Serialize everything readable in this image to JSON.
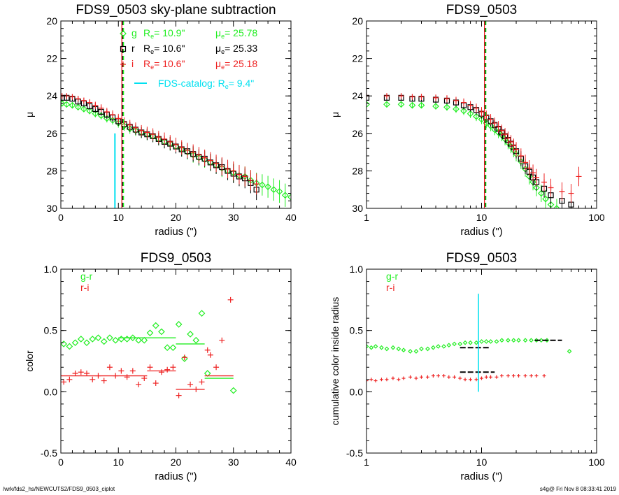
{
  "footer": {
    "path": "/wrk/fds2_hs/NEWCUTS2/FDS9_0503_ciplot",
    "stamp": "s4g@  Fri Nov  8 08:33:41 2019"
  },
  "colors": {
    "g": "#22ee22",
    "r": "#000000",
    "i": "#ee2222",
    "catalog": "#00e0f0"
  },
  "chart_data": [
    {
      "id": "p1",
      "type": "scatter",
      "title": "FDS9_0503 sky-plane subtraction",
      "xlabel": "radius (\")",
      "ylabel": "μ",
      "xscale": "linear",
      "xlim": [
        0,
        40
      ],
      "ylim": [
        30,
        20
      ],
      "xticks": [
        "0",
        "10",
        "20",
        "30",
        "40"
      ],
      "yticks": [
        "20",
        "22",
        "24",
        "26",
        "28",
        "30"
      ],
      "legend": [
        {
          "marker": "diamond",
          "color": "#22ee22",
          "band": "g",
          "re_label": "R",
          "re_sub": "e",
          "re_value": "= 10.9\"",
          "mu_label": "μ",
          "mu_sub": "e",
          "mu_value": "= 25.78"
        },
        {
          "marker": "square",
          "color": "#000000",
          "band": "r",
          "re_label": "R",
          "re_sub": "e",
          "re_value": "= 10.6\"",
          "mu_label": "μ",
          "mu_sub": "e",
          "mu_value": "= 25.33"
        },
        {
          "marker": "plus",
          "color": "#ee2222",
          "band": "i",
          "re_label": "R",
          "re_sub": "e",
          "re_value": "= 10.6\"",
          "mu_label": "μ",
          "mu_sub": "e",
          "mu_value": "= 25.18"
        }
      ],
      "catalog": {
        "label": "FDS-catalog: R",
        "sub": "e",
        "value": "=   9.4\"",
        "re": 9.4,
        "line_from": 26.0,
        "line_to": 30
      },
      "re_lines": {
        "g": 10.9,
        "r": 10.6,
        "i": 10.6
      },
      "series": [
        {
          "name": "g",
          "x": [
            0.2,
            1,
            2,
            3,
            4,
            5,
            6,
            7,
            8,
            9,
            10,
            11,
            12,
            13,
            14,
            15,
            16,
            17,
            18,
            19,
            20,
            21,
            22,
            23,
            24,
            25,
            26,
            27,
            28,
            29,
            30,
            31,
            32,
            33,
            34,
            35,
            36,
            37,
            38,
            39,
            40
          ],
          "y": [
            24.4,
            24.45,
            24.5,
            24.6,
            24.7,
            24.8,
            24.95,
            25.05,
            25.2,
            25.3,
            25.45,
            25.6,
            25.75,
            25.85,
            25.95,
            26.05,
            26.15,
            26.3,
            26.45,
            26.55,
            26.7,
            26.85,
            27.0,
            27.15,
            27.3,
            27.4,
            27.55,
            27.7,
            27.85,
            28.0,
            28.1,
            28.25,
            28.3,
            28.5,
            28.65,
            28.75,
            28.85,
            29.0,
            29.1,
            29.3,
            29.4
          ]
        },
        {
          "name": "r",
          "x": [
            0.2,
            1,
            2,
            3,
            4,
            5,
            6,
            7,
            8,
            9,
            10,
            11,
            12,
            13,
            14,
            15,
            16,
            17,
            18,
            19,
            20,
            21,
            22,
            23,
            24,
            25,
            26,
            27,
            28,
            29,
            30,
            31,
            32,
            33,
            34
          ],
          "y": [
            24.1,
            24.1,
            24.15,
            24.3,
            24.4,
            24.55,
            24.7,
            24.85,
            25.0,
            25.15,
            25.35,
            25.5,
            25.65,
            25.8,
            25.95,
            26.05,
            26.15,
            26.3,
            26.45,
            26.55,
            26.7,
            26.85,
            26.95,
            27.1,
            27.25,
            27.35,
            27.55,
            27.7,
            27.8,
            28.0,
            28.15,
            28.3,
            28.4,
            28.65,
            29.0
          ]
        },
        {
          "name": "i",
          "x": [
            0.2,
            1,
            2,
            3,
            4,
            5,
            6,
            7,
            8,
            9,
            10,
            11,
            12,
            13,
            14,
            15,
            16,
            17,
            18,
            19,
            20,
            21,
            22,
            23,
            24,
            25,
            26,
            27,
            28,
            29,
            30,
            31,
            32,
            33,
            34
          ],
          "y": [
            24.0,
            24.0,
            24.05,
            24.15,
            24.25,
            24.35,
            24.5,
            24.65,
            24.85,
            25.0,
            25.2,
            25.4,
            25.55,
            25.7,
            25.85,
            25.95,
            26.05,
            26.2,
            26.3,
            26.45,
            26.6,
            26.75,
            26.9,
            27.0,
            27.15,
            27.3,
            27.45,
            27.6,
            27.75,
            27.9,
            28.0,
            28.2,
            28.3,
            28.5,
            28.7
          ]
        }
      ]
    },
    {
      "id": "p2",
      "type": "scatter",
      "title": "FDS9_0503",
      "xlabel": "radius (\")",
      "ylabel": "μ",
      "xscale": "log",
      "xlim": [
        1,
        100
      ],
      "ylim": [
        30,
        20
      ],
      "xticks": [
        "1",
        "10",
        "100"
      ],
      "yticks": [
        "20",
        "22",
        "24",
        "26",
        "28",
        "30"
      ],
      "re_lines": {
        "g": 10.9,
        "r": 10.6,
        "i": 10.6
      },
      "series": [
        {
          "name": "g",
          "x": [
            1,
            1.5,
            2,
            2.5,
            3,
            4,
            5,
            6,
            7,
            8,
            9,
            10,
            11,
            12,
            13,
            14,
            15,
            16,
            17,
            18,
            19,
            20,
            22,
            24,
            26,
            28,
            30,
            33,
            36,
            40,
            45
          ],
          "y": [
            24.45,
            24.45,
            24.45,
            24.5,
            24.5,
            24.55,
            24.6,
            24.7,
            24.8,
            24.95,
            25.1,
            25.25,
            25.45,
            25.6,
            25.8,
            25.95,
            26.1,
            26.3,
            26.5,
            26.7,
            26.9,
            27.1,
            27.5,
            27.9,
            28.3,
            28.6,
            28.9,
            29.2,
            29.5,
            29.8,
            30.0
          ]
        },
        {
          "name": "r",
          "x": [
            1,
            1.5,
            2,
            2.5,
            3,
            4,
            5,
            6,
            7,
            8,
            9,
            10,
            11,
            12,
            13,
            14,
            15,
            16,
            17,
            18,
            19,
            20,
            22,
            24,
            26,
            28,
            30,
            35,
            40,
            50,
            60
          ],
          "y": [
            24.1,
            24.1,
            24.1,
            24.15,
            24.15,
            24.2,
            24.25,
            24.35,
            24.5,
            24.6,
            24.75,
            24.95,
            25.15,
            25.35,
            25.55,
            25.75,
            25.95,
            26.15,
            26.35,
            26.55,
            26.75,
            26.95,
            27.35,
            27.75,
            28.05,
            28.35,
            28.6,
            28.95,
            29.3,
            29.6,
            29.8
          ]
        },
        {
          "name": "i",
          "x": [
            1,
            1.5,
            2,
            2.5,
            3,
            4,
            5,
            6,
            7,
            8,
            9,
            10,
            11,
            12,
            13,
            14,
            15,
            16,
            17,
            18,
            19,
            20,
            22,
            24,
            26,
            28,
            30,
            35,
            40,
            50,
            60,
            70
          ],
          "y": [
            24.0,
            24.0,
            24.0,
            24.05,
            24.05,
            24.1,
            24.15,
            24.25,
            24.35,
            24.5,
            24.65,
            24.85,
            25.05,
            25.25,
            25.45,
            25.65,
            25.85,
            26.05,
            26.25,
            26.45,
            26.65,
            26.85,
            27.2,
            27.55,
            27.85,
            28.1,
            28.35,
            28.6,
            28.9,
            29.1,
            29.2,
            28.3
          ]
        }
      ]
    },
    {
      "id": "p3",
      "type": "scatter",
      "title": "FDS9_0503",
      "xlabel": "radius (\")",
      "ylabel": "color",
      "xscale": "linear",
      "xlim": [
        0,
        40
      ],
      "ylim": [
        -0.5,
        1.0
      ],
      "xticks": [
        "0",
        "10",
        "20",
        "30",
        "40"
      ],
      "yticks": [
        "-0.5",
        "0.0",
        "0.5",
        "1.0"
      ],
      "legend_text": [
        {
          "label": "g-r",
          "color": "#22ee22"
        },
        {
          "label": "r-i",
          "color": "#ee2222"
        }
      ],
      "series": [
        {
          "name": "g-r",
          "x": [
            0.5,
            1.5,
            2.5,
            3.5,
            4.5,
            5.5,
            6.5,
            7.5,
            8.5,
            9.5,
            10.5,
            11.5,
            12.5,
            13.5,
            14.5,
            15.5,
            16.5,
            17.5,
            18.5,
            19.5,
            20.5,
            21.5,
            22.5,
            23.5,
            24.5,
            25.5,
            30.0
          ],
          "y": [
            0.39,
            0.37,
            0.4,
            0.43,
            0.4,
            0.43,
            0.44,
            0.41,
            0.44,
            0.42,
            0.43,
            0.43,
            0.44,
            0.42,
            0.42,
            0.48,
            0.54,
            0.49,
            0.36,
            0.36,
            0.55,
            0.27,
            0.47,
            0.42,
            0.64,
            0.15,
            0.01
          ]
        },
        {
          "name": "r-i",
          "x": [
            0.5,
            1.5,
            2.5,
            3.5,
            4.5,
            5.5,
            6.5,
            7.5,
            8.5,
            9.5,
            10.5,
            11.5,
            12.5,
            13.5,
            14.5,
            15.5,
            16.5,
            17.5,
            18.5,
            19.5,
            20.5,
            21.5,
            22.5,
            23.5,
            24.5,
            25.5,
            26.0,
            27.0,
            28.0,
            29.5
          ],
          "y": [
            0.08,
            0.1,
            0.15,
            0.16,
            0.15,
            0.1,
            0.13,
            0.09,
            0.2,
            0.13,
            0.17,
            0.12,
            0.17,
            0.06,
            0.11,
            0.2,
            0.07,
            0.16,
            0.18,
            0.2,
            -0.03,
            0.28,
            0.06,
            0.02,
            0.08,
            0.34,
            0.3,
            0.2,
            0.42,
            0.75
          ]
        }
      ],
      "segments": [
        {
          "series": "g-r",
          "x0": 10,
          "x1": 15,
          "y": 0.44
        },
        {
          "series": "g-r",
          "x0": 15,
          "x1": 20,
          "y": 0.44
        },
        {
          "series": "g-r",
          "x0": 20,
          "x1": 25,
          "y": 0.39
        },
        {
          "series": "g-r",
          "x0": 25,
          "x1": 30,
          "y": 0.11
        },
        {
          "series": "r-i",
          "x0": 0,
          "x1": 15,
          "y": 0.13
        },
        {
          "series": "r-i",
          "x0": 15,
          "x1": 20,
          "y": 0.17
        },
        {
          "series": "r-i",
          "x0": 20,
          "x1": 25,
          "y": 0.02
        },
        {
          "series": "r-i",
          "x0": 25,
          "x1": 30,
          "y": 0.13
        }
      ]
    },
    {
      "id": "p4",
      "type": "scatter",
      "title": "FDS9_0503",
      "xlabel": "radius (\")",
      "ylabel": "cumulative color inside radius",
      "xscale": "log",
      "xlim": [
        1,
        100
      ],
      "ylim": [
        -0.5,
        1.0
      ],
      "xticks": [
        "1",
        "10",
        "100"
      ],
      "yticks": [
        "-0.5",
        "0.0",
        "0.5",
        "1.0"
      ],
      "legend_text": [
        {
          "label": "g-r",
          "color": "#22ee22"
        },
        {
          "label": "r-i",
          "color": "#ee2222"
        }
      ],
      "catalog_line": {
        "x": 9.4,
        "y0": 0.0,
        "y1": 0.8
      },
      "series": [
        {
          "name": "g-r",
          "x": [
            1,
            1.1,
            1.2,
            1.35,
            1.5,
            1.7,
            1.9,
            2.1,
            2.4,
            2.7,
            3,
            3.4,
            3.8,
            4.2,
            4.7,
            5.2,
            5.8,
            6.5,
            7.2,
            8,
            9,
            10,
            11,
            12,
            13.5,
            15,
            17,
            19,
            21,
            24,
            27,
            30,
            33,
            37,
            58
          ],
          "y": [
            0.37,
            0.36,
            0.37,
            0.36,
            0.35,
            0.36,
            0.35,
            0.34,
            0.33,
            0.33,
            0.35,
            0.35,
            0.36,
            0.37,
            0.37,
            0.38,
            0.39,
            0.39,
            0.4,
            0.4,
            0.4,
            0.41,
            0.41,
            0.41,
            0.41,
            0.42,
            0.42,
            0.42,
            0.42,
            0.42,
            0.42,
            0.42,
            0.42,
            0.42,
            0.33
          ]
        },
        {
          "name": "r-i",
          "x": [
            1,
            1.1,
            1.2,
            1.35,
            1.5,
            1.7,
            1.9,
            2.1,
            2.4,
            2.7,
            3,
            3.4,
            3.8,
            4.2,
            4.7,
            5.2,
            5.8,
            6.5,
            7.2,
            8,
            9,
            10,
            11,
            12,
            13.5,
            15,
            17,
            19,
            21,
            24,
            27,
            30,
            35
          ],
          "y": [
            0.09,
            0.1,
            0.09,
            0.1,
            0.1,
            0.11,
            0.1,
            0.11,
            0.12,
            0.11,
            0.12,
            0.12,
            0.13,
            0.13,
            0.13,
            0.12,
            0.12,
            0.11,
            0.1,
            0.1,
            0.1,
            0.11,
            0.12,
            0.12,
            0.12,
            0.13,
            0.13,
            0.13,
            0.13,
            0.13,
            0.13,
            0.13,
            0.13
          ]
        }
      ],
      "segments": [
        {
          "series": "g-r",
          "x0": 6.5,
          "x1": 12,
          "y": 0.36,
          "color": "#000000"
        },
        {
          "series": "g-r",
          "x0": 29,
          "x1": 50,
          "y": 0.42,
          "color": "#000000"
        },
        {
          "series": "r-i",
          "x0": 6.5,
          "x1": 13,
          "y": 0.16,
          "color": "#000000"
        }
      ]
    }
  ]
}
